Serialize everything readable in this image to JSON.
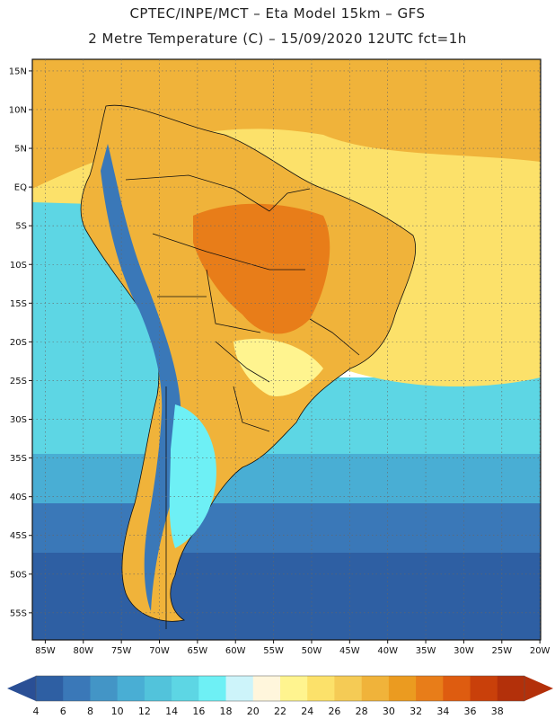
{
  "title_line1": "CPTEC/INPE/MCT –  Eta Model 15km – GFS",
  "title_line2": "2 Metre Temperature (C) – 15/09/2020 12UTC fct=1h",
  "lat_labels": [
    "15N",
    "10N",
    "5N",
    "EQ",
    "5S",
    "10S",
    "15S",
    "20S",
    "25S",
    "30S",
    "35S",
    "40S",
    "45S",
    "50S",
    "55S"
  ],
  "lat_values": [
    15,
    10,
    5,
    0,
    -5,
    -10,
    -15,
    -20,
    -25,
    -30,
    -35,
    -40,
    -45,
    -50,
    -55
  ],
  "lon_labels": [
    "85W",
    "80W",
    "75W",
    "70W",
    "65W",
    "60W",
    "55W",
    "50W",
    "45W",
    "40W",
    "35W",
    "30W",
    "25W",
    "20W"
  ],
  "lon_values": [
    -85,
    -80,
    -75,
    -70,
    -65,
    -60,
    -55,
    -50,
    -45,
    -40,
    -35,
    -30,
    -25,
    -20
  ],
  "colorbar": {
    "labels": [
      "4",
      "6",
      "8",
      "10",
      "12",
      "14",
      "16",
      "18",
      "20",
      "22",
      "24",
      "26",
      "28",
      "30",
      "32",
      "34",
      "36",
      "38"
    ],
    "colors": [
      "#2e5fa3",
      "#3a78b8",
      "#4395c6",
      "#49aed4",
      "#52c3db",
      "#5dd6e4",
      "#6ef0f5",
      "#cdf4fa",
      "#fff6dc",
      "#fff48f",
      "#fce16a",
      "#f5cb55",
      "#f0b33a",
      "#eb9b20",
      "#e87d19",
      "#de5c10",
      "#c9400a",
      "#b3300a"
    ],
    "under_color": "#2a4f95",
    "over_color": "#b3300a"
  },
  "map_colors": {
    "ocean_deep": "#2e5fa3",
    "ocean_mid": "#3a78b8",
    "ocean_cool": "#49aed4",
    "ocean_warm": "#5dd6e4",
    "ocean_tropic": "#fce16a",
    "north_ocean": "#f0b33a",
    "land_warm": "#f0b33a",
    "land_hot": "#e87d19",
    "land_mild": "#fff48f",
    "andes": "#3a78b8",
    "patagonia": "#6ef0f5",
    "border": "#111111"
  }
}
